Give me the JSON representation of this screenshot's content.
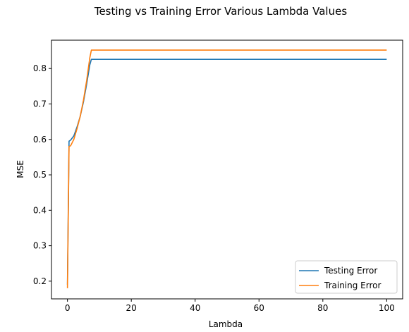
{
  "chart_data": {
    "type": "line",
    "title": "Testing vs Training Error Various Lambda Values",
    "xlabel": "Lambda",
    "ylabel": "MSE",
    "xlim": [
      -5,
      105
    ],
    "ylim": [
      0.15,
      0.88
    ],
    "xticks": [
      0,
      20,
      40,
      60,
      80,
      100
    ],
    "xtick_labels": [
      "0",
      "20",
      "40",
      "60",
      "80",
      "100"
    ],
    "yticks": [
      0.2,
      0.3,
      0.4,
      0.5,
      0.6,
      0.7,
      0.8
    ],
    "ytick_labels": [
      "0.2",
      "0.3",
      "0.4",
      "0.5",
      "0.6",
      "0.7",
      "0.8"
    ],
    "grid": false,
    "legend_position": "lower-right",
    "series": [
      {
        "name": "Testing Error",
        "color": "#1f77b4",
        "x": [
          0,
          0.5,
          1,
          2,
          3,
          4,
          5,
          6,
          7,
          7.5,
          100
        ],
        "y": [
          0.19,
          0.595,
          0.598,
          0.61,
          0.635,
          0.665,
          0.705,
          0.755,
          0.81,
          0.826,
          0.826
        ]
      },
      {
        "name": "Training Error",
        "color": "#ff7f0e",
        "x": [
          0,
          0.5,
          1,
          2,
          3,
          4,
          5,
          6,
          7,
          7.5,
          100
        ],
        "y": [
          0.18,
          0.58,
          0.582,
          0.6,
          0.63,
          0.665,
          0.71,
          0.765,
          0.83,
          0.852,
          0.852
        ]
      }
    ]
  }
}
